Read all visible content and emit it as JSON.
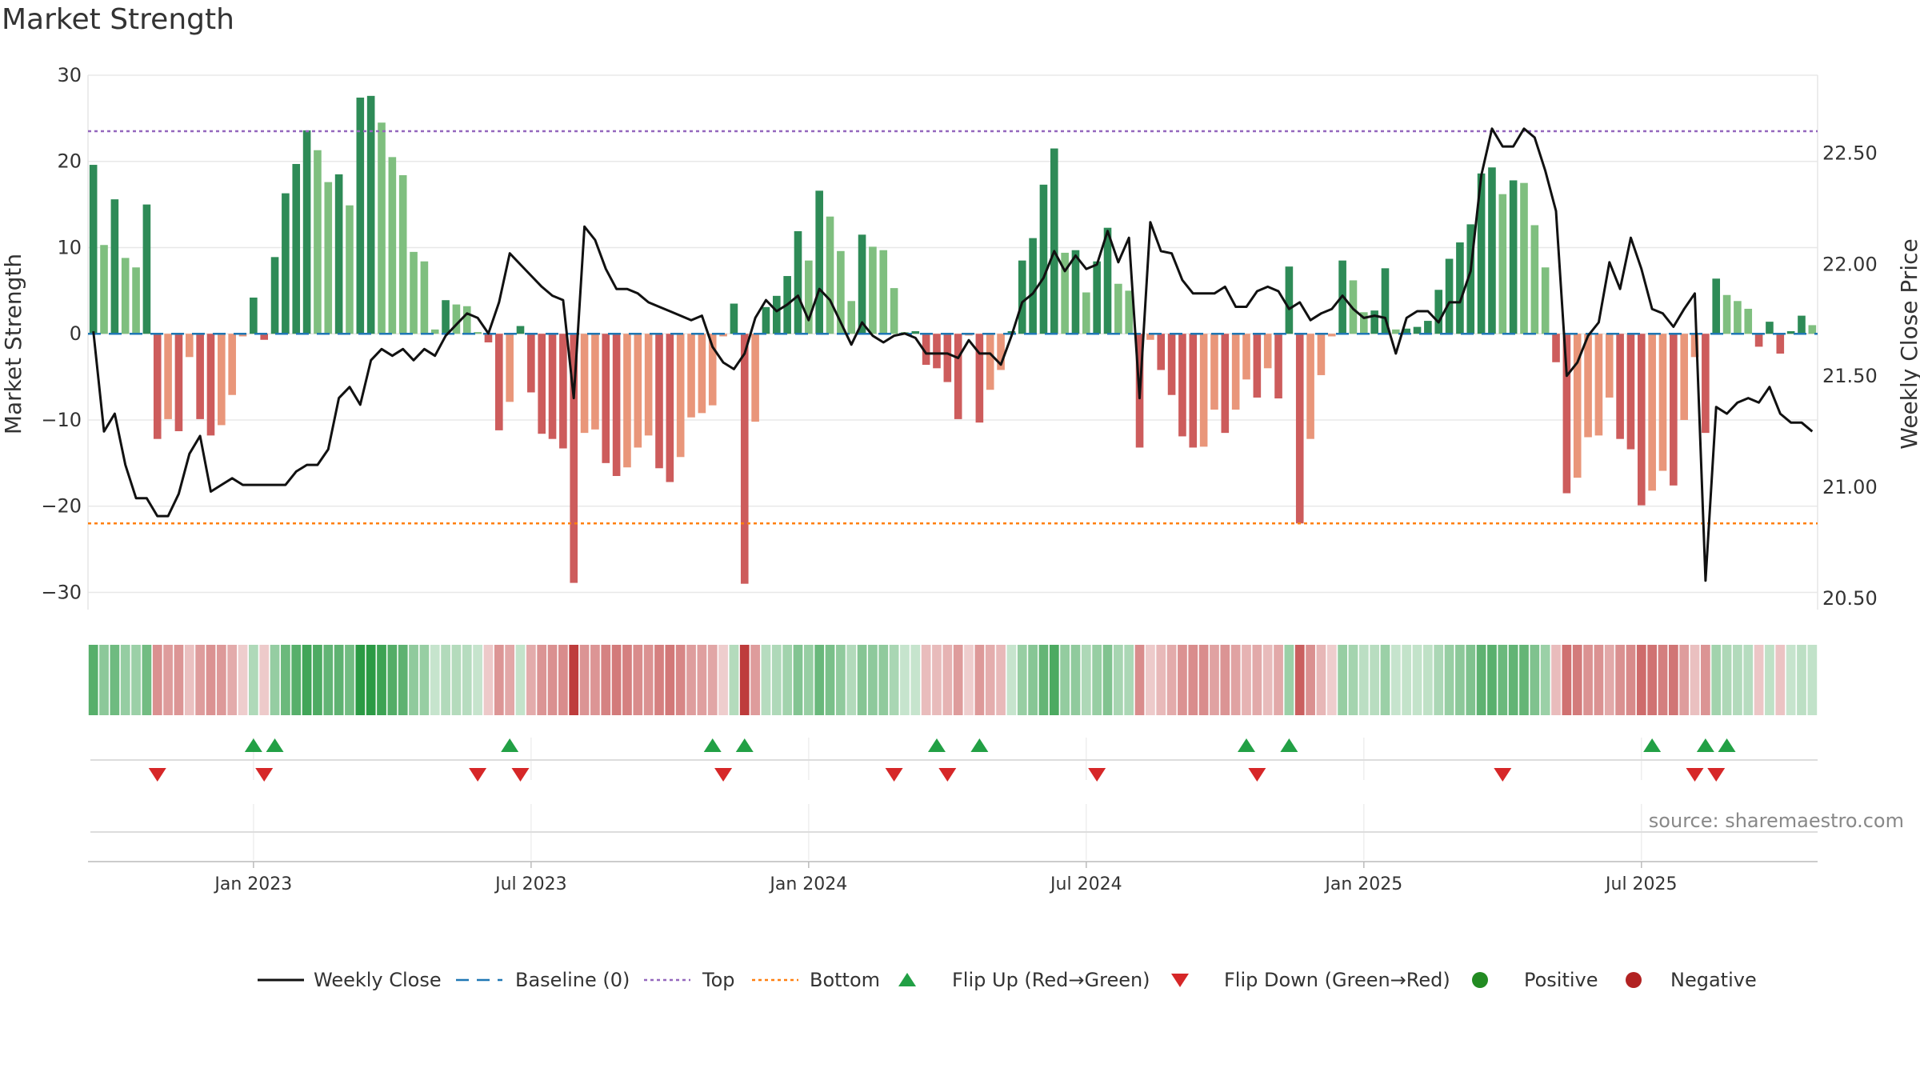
{
  "title": "Market Strength",
  "source": "source: sharemaestro.com",
  "chart_data": {
    "type": "bar",
    "title": "Market Strength",
    "ylabel": "Market Strength",
    "y2label": "Weekly Close Price",
    "ylim": [
      -32,
      30
    ],
    "y2lim": [
      20.45,
      22.85
    ],
    "yticks": [
      30,
      20,
      10,
      0,
      -10,
      -20,
      -30
    ],
    "y2ticks": [
      "22.50",
      "22.00",
      "21.50",
      "21.00",
      "20.50"
    ],
    "xticks": [
      {
        "label": "Jan 2023",
        "index": 15
      },
      {
        "label": "Jul 2023",
        "index": 41
      },
      {
        "label": "Jan 2024",
        "index": 67
      },
      {
        "label": "Jul 2024",
        "index": 93
      },
      {
        "label": "Jan 2025",
        "index": 119
      },
      {
        "label": "Jul 2025",
        "index": 145
      }
    ],
    "top_level": 23.5,
    "bottom_level": -22,
    "strength": [
      19.6,
      10.3,
      15.6,
      8.8,
      7.7,
      15,
      -12.2,
      -9.9,
      -11.3,
      -2.7,
      -9.9,
      -11.8,
      -10.6,
      -7.1,
      -0.3,
      4.2,
      -0.7,
      8.9,
      16.3,
      19.7,
      23.6,
      21.3,
      17.6,
      18.5,
      14.9,
      27.4,
      27.6,
      24.5,
      20.5,
      18.4,
      9.5,
      8.4,
      0.5,
      3.9,
      3.4,
      3.2,
      0.2,
      -1,
      -11.2,
      -7.9,
      0.9,
      -6.8,
      -11.6,
      -12.2,
      -13.3,
      -28.9,
      -11.5,
      -11.1,
      -15,
      -16.5,
      -15.5,
      -13.2,
      -11.8,
      -15.6,
      -17.2,
      -14.3,
      -9.7,
      -9.2,
      -8.3,
      -0.3,
      3.5,
      -29,
      -10.2,
      3.1,
      4.4,
      6.7,
      11.9,
      8.5,
      16.6,
      13.6,
      9.6,
      3.8,
      11.5,
      10.1,
      9.7,
      5.3,
      0.2,
      0.3,
      -3.6,
      -4,
      -5.6,
      -9.9,
      -0.2,
      -10.3,
      -6.5,
      -4.2,
      0.3,
      8.5,
      11.1,
      17.3,
      21.5,
      9.4,
      9.7,
      4.8,
      8.4,
      12.3,
      5.8,
      5,
      -13.2,
      -0.7,
      -4.2,
      -7.1,
      -11.9,
      -13.2,
      -13.1,
      -8.8,
      -11.5,
      -8.8,
      -5.3,
      -7.4,
      -4,
      -7.5,
      7.8,
      -22,
      -12.2,
      -4.8,
      -0.3,
      8.5,
      6.2,
      2.5,
      2.7,
      7.6,
      0.5,
      0.6,
      0.8,
      1.5,
      5.1,
      8.7,
      10.6,
      12.7,
      18.6,
      19.3,
      16.2,
      17.8,
      17.5,
      12.6,
      7.7,
      -3.3,
      -18.5,
      -16.7,
      -12,
      -11.8,
      -7.4,
      -12.2,
      -13.4,
      -19.9,
      -18.2,
      -15.9,
      -17.6,
      -10,
      -2.7,
      -11.5,
      6.4,
      4.5,
      3.8,
      2.9,
      -1.5,
      1.4,
      -2.3,
      0.3,
      2.1,
      1
    ],
    "price": [
      21.7,
      21.25,
      21.33,
      21.1,
      20.95,
      20.95,
      20.87,
      20.87,
      20.97,
      21.15,
      21.23,
      20.98,
      21.01,
      21.04,
      21.01,
      21.01,
      21.01,
      21.01,
      21.01,
      21.07,
      21.1,
      21.1,
      21.17,
      21.4,
      21.45,
      21.37,
      21.57,
      21.62,
      21.59,
      21.62,
      21.57,
      21.62,
      21.59,
      21.68,
      21.73,
      21.78,
      21.76,
      21.69,
      21.83,
      22.05,
      22,
      21.95,
      21.9,
      21.86,
      21.84,
      21.4,
      22.17,
      22.11,
      21.98,
      21.89,
      21.89,
      21.87,
      21.83,
      21.81,
      21.79,
      21.77,
      21.75,
      21.77,
      21.63,
      21.56,
      21.53,
      21.6,
      21.76,
      21.84,
      21.79,
      21.82,
      21.86,
      21.75,
      21.89,
      21.84,
      21.74,
      21.64,
      21.74,
      21.68,
      21.65,
      21.68,
      21.69,
      21.67,
      21.6,
      21.6,
      21.6,
      21.58,
      21.66,
      21.6,
      21.6,
      21.55,
      21.68,
      21.83,
      21.87,
      21.94,
      22.06,
      21.97,
      22.04,
      21.98,
      22,
      22.15,
      22.01,
      22.12,
      21.4,
      22.19,
      22.06,
      22.05,
      21.93,
      21.87,
      21.87,
      21.87,
      21.9,
      21.81,
      21.81,
      21.88,
      21.9,
      21.88,
      21.8,
      21.83,
      21.75,
      21.78,
      21.8,
      21.86,
      21.8,
      21.76,
      21.77,
      21.76,
      21.6,
      21.76,
      21.79,
      21.79,
      21.74,
      21.83,
      21.83,
      21.97,
      22.4,
      22.61,
      22.53,
      22.53,
      22.61,
      22.57,
      22.42,
      22.24,
      21.5,
      21.56,
      21.68,
      21.74,
      22.01,
      21.89,
      22.12,
      21.98,
      21.8,
      21.78,
      21.72,
      21.8,
      21.87,
      20.58,
      21.36,
      21.33,
      21.38,
      21.4,
      21.38,
      21.45,
      21.33,
      21.29,
      21.29,
      21.25
    ],
    "flip_up": [
      15,
      17,
      39,
      58,
      61,
      79,
      83,
      108,
      112,
      146,
      151,
      153
    ],
    "flip_down": [
      6,
      16,
      36,
      40,
      59,
      75,
      80,
      94,
      109,
      132,
      150,
      152
    ],
    "legend": [
      {
        "key": "weekly_close",
        "label": "Weekly Close"
      },
      {
        "key": "baseline",
        "label": "Baseline (0)"
      },
      {
        "key": "top",
        "label": "Top"
      },
      {
        "key": "bottom",
        "label": "Bottom"
      },
      {
        "key": "flip_up",
        "label": "Flip Up (Red→Green)"
      },
      {
        "key": "flip_down",
        "label": "Flip Down (Green→Red)"
      },
      {
        "key": "positive",
        "label": "Positive"
      },
      {
        "key": "negative",
        "label": "Negative"
      }
    ],
    "colors": {
      "pos_dark": "#2e8b57",
      "pos_light": "#7fbf7f",
      "neg_dark": "#cd5c5c",
      "neg_light": "#e9967a",
      "line": "#111111",
      "baseline": "#1f77b4",
      "top": "#9467bd",
      "bottom": "#ff7f0e",
      "flip_up": "#22a045",
      "flip_down": "#d62728",
      "positive": "#228b22",
      "negative": "#b22222"
    }
  }
}
